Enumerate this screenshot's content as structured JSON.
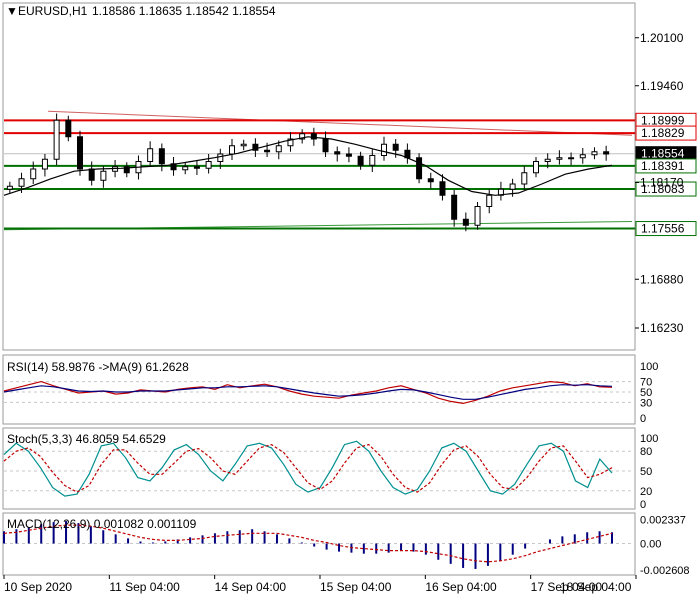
{
  "header": {
    "symbol": "EURUSD,H1",
    "ohlc": "1.18586 1.18635 1.18542 1.18554"
  },
  "colors": {
    "bull_candle": "#000000",
    "bear_candle": "#000000",
    "moving_average": "#000000",
    "resistance": "#e00000",
    "support": "#007000",
    "trendline_resistance": "#d06060",
    "trendline_support": "#3a9a3a",
    "current_price_tag": "#000000",
    "rsi_line": "#c00000",
    "rsi_ma": "#000080",
    "stoch_main": "#009090",
    "stoch_signal": "#c00000",
    "macd_hist": "#000080",
    "macd_signal": "#c00000",
    "grid": "#c8c8c8"
  },
  "chart_data": [
    {
      "type": "candlestick",
      "panel": "price",
      "title": "EURUSD,H1",
      "ylim": [
        1.1595,
        1.2055
      ],
      "y_ticks": [
        "1.20100",
        "1.19460",
        "1.18170",
        "1.16880",
        "1.16230"
      ],
      "x_ticks": [
        "10 Sep 2020",
        "11 Sep 04:00",
        "14 Sep 04:00",
        "15 Sep 04:00",
        "16 Sep 04:00",
        "17 Sep 04:00",
        "18 Sep 04:00"
      ],
      "close_path": [
        1.1812,
        1.1822,
        1.1835,
        1.1848,
        1.19,
        1.1878,
        1.1835,
        1.182,
        1.1832,
        1.1838,
        1.183,
        1.1845,
        1.1862,
        1.1842,
        1.1834,
        1.1838,
        1.1836,
        1.1845,
        1.1855,
        1.1866,
        1.1868,
        1.186,
        1.1858,
        1.1866,
        1.1875,
        1.1882,
        1.1875,
        1.1858,
        1.1855,
        1.1852,
        1.184,
        1.1853,
        1.1868,
        1.186,
        1.185,
        1.1822,
        1.1818,
        1.18,
        1.1768,
        1.176,
        1.1785,
        1.18,
        1.1808,
        1.1815,
        1.183,
        1.1845,
        1.1848,
        1.185,
        1.185,
        1.1854,
        1.1858,
        1.1855
      ],
      "moving_average": [
        1.18,
        1.181,
        1.1822,
        1.1832,
        1.1835,
        1.1836,
        1.1838,
        1.184,
        1.1845,
        1.185,
        1.1856,
        1.1864,
        1.1872,
        1.1878,
        1.1875,
        1.1868,
        1.186,
        1.1853,
        1.184,
        1.182,
        1.1805,
        1.18,
        1.1803,
        1.1815,
        1.1828,
        1.1835,
        1.184
      ],
      "horizontal_levels": [
        {
          "label": "1.18999",
          "value": 1.18999,
          "role": "resistance"
        },
        {
          "label": "1.18829",
          "value": 1.18829,
          "role": "resistance"
        },
        {
          "label": "1.18554",
          "value": 1.18554,
          "role": "current"
        },
        {
          "label": "1.18391",
          "value": 1.18391,
          "role": "support"
        },
        {
          "label": "1.18083",
          "value": 1.18083,
          "role": "support"
        },
        {
          "label": "1.17556",
          "value": 1.17556,
          "role": "support"
        }
      ],
      "trendlines": [
        {
          "role": "resistance",
          "from": [
            0.07,
            1.1912
          ],
          "to": [
            1.0,
            1.188
          ]
        },
        {
          "role": "support",
          "from": [
            0.0,
            1.1754
          ],
          "to": [
            1.0,
            1.1765
          ]
        }
      ]
    },
    {
      "type": "line",
      "panel": "rsi",
      "title": "RSI(14) 58.9876  ->MA(9) 61.2628",
      "ylim": [
        0,
        100
      ],
      "y_ticks": [
        "100",
        "70",
        "50",
        "30",
        "0"
      ],
      "series": [
        {
          "values": [
            52,
            58,
            64,
            70,
            62,
            55,
            48,
            50,
            52,
            46,
            48,
            54,
            52,
            50,
            55,
            58,
            60,
            55,
            64,
            58,
            62,
            65,
            60,
            52,
            46,
            42,
            40,
            38,
            44,
            48,
            52,
            58,
            62,
            55,
            48,
            38,
            32,
            28,
            34,
            42,
            52,
            58,
            62,
            66,
            70,
            68,
            62,
            66,
            60,
            59
          ]
        },
        {
          "values": [
            50,
            54,
            58,
            62,
            60,
            56,
            52,
            51,
            52,
            50,
            50,
            52,
            52,
            52,
            54,
            56,
            58,
            58,
            60,
            60,
            61,
            62,
            60,
            56,
            52,
            48,
            45,
            42,
            43,
            45,
            48,
            52,
            55,
            54,
            50,
            45,
            40,
            36,
            36,
            40,
            45,
            50,
            55,
            58,
            62,
            64,
            63,
            64,
            62,
            61
          ]
        }
      ]
    },
    {
      "type": "line",
      "panel": "stochastic",
      "title": "Stoch(5,3,3) 46.8059 54.6529",
      "ylim": [
        0,
        100
      ],
      "y_ticks": [
        "100",
        "80",
        "50",
        "20",
        "0"
      ],
      "series": [
        {
          "values": [
            75,
            92,
            80,
            55,
            25,
            12,
            15,
            45,
            88,
            92,
            70,
            40,
            35,
            55,
            82,
            90,
            75,
            50,
            35,
            60,
            88,
            92,
            85,
            60,
            30,
            18,
            25,
            55,
            90,
            95,
            80,
            50,
            25,
            15,
            22,
            50,
            85,
            92,
            80,
            50,
            20,
            15,
            30,
            60,
            88,
            92,
            80,
            35,
            25,
            68,
            47
          ]
        },
        {
          "values": [
            65,
            80,
            85,
            72,
            48,
            28,
            18,
            28,
            60,
            82,
            82,
            62,
            45,
            45,
            62,
            80,
            84,
            70,
            50,
            45,
            65,
            85,
            90,
            78,
            55,
            32,
            22,
            35,
            62,
            85,
            90,
            72,
            45,
            25,
            18,
            32,
            60,
            82,
            88,
            72,
            45,
            25,
            22,
            40,
            65,
            85,
            88,
            65,
            40,
            45,
            55
          ]
        }
      ]
    },
    {
      "type": "bar",
      "panel": "macd",
      "title": "MACD(12,26,9) 0.001082 0.001109",
      "ylim": [
        -0.0028,
        0.0026
      ],
      "y_ticks": [
        "0.002337",
        "0.00",
        "-0.002608"
      ],
      "histogram": [
        0.0012,
        0.0014,
        0.0016,
        0.0019,
        0.0021,
        0.0022,
        0.002,
        0.0017,
        0.0013,
        0.0009,
        0.0005,
        0.0002,
        0.0001,
        0.0002,
        0.0004,
        0.0006,
        0.0008,
        0.001,
        0.0012,
        0.0013,
        0.0014,
        0.0012,
        0.0009,
        0.0005,
        0.0001,
        -0.0003,
        -0.0006,
        -0.0008,
        -0.0009,
        -0.001,
        -0.001,
        -0.0009,
        -0.0007,
        -0.0008,
        -0.0011,
        -0.0016,
        -0.002,
        -0.0024,
        -0.0025,
        -0.0022,
        -0.0017,
        -0.0011,
        -0.0005,
        0.0,
        0.0004,
        0.0007,
        0.0009,
        0.0011,
        0.0012,
        0.0011
      ],
      "signal": [
        0.001,
        0.0011,
        0.0013,
        0.0015,
        0.0017,
        0.0018,
        0.0018,
        0.0017,
        0.0015,
        0.0012,
        0.0009,
        0.0006,
        0.0004,
        0.0003,
        0.0003,
        0.0004,
        0.0005,
        0.0007,
        0.0008,
        0.0009,
        0.001,
        0.001,
        0.001,
        0.0008,
        0.0006,
        0.0003,
        0.0001,
        -0.0002,
        -0.0004,
        -0.0005,
        -0.0006,
        -0.0007,
        -0.0007,
        -0.0007,
        -0.0008,
        -0.001,
        -0.0012,
        -0.0015,
        -0.0017,
        -0.0018,
        -0.0017,
        -0.0015,
        -0.0012,
        -0.0008,
        -0.0005,
        -0.0002,
        0.0001,
        0.0004,
        0.0007,
        0.001
      ]
    }
  ]
}
